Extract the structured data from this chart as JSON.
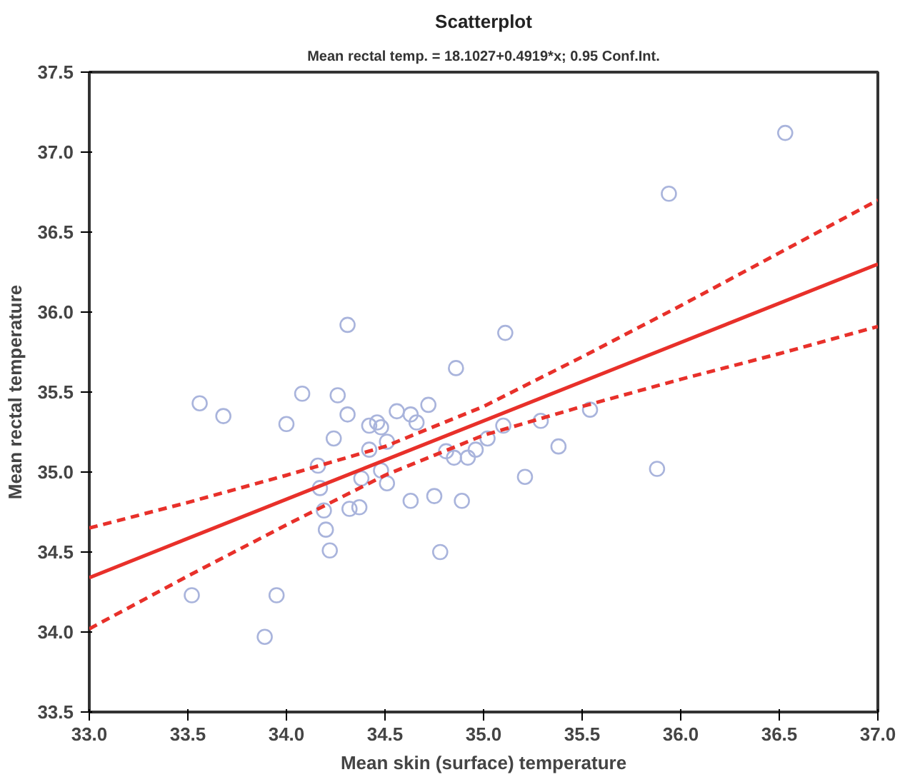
{
  "chart_data": {
    "type": "scatter",
    "title": "Scatterplot",
    "subtitle": "Mean rectal temp. = 18.1027+0.4919*x; 0.95 Conf.Int.",
    "xlabel": "Mean skin (surface) temperature",
    "ylabel": "Mean rectal temperature",
    "xlim": [
      33.0,
      37.0
    ],
    "ylim": [
      33.5,
      37.5
    ],
    "xticks": [
      {
        "value": 33,
        "label": "33.0"
      },
      33.5,
      {
        "value": 34,
        "label": "34.0"
      },
      34.5,
      {
        "value": 35,
        "label": "35.0"
      },
      35.5,
      {
        "value": 36,
        "label": "36.0"
      },
      36.5,
      {
        "value": 37,
        "label": "37.0"
      }
    ],
    "yticks": [
      33.5,
      {
        "value": 34,
        "label": "34.0"
      },
      34.5,
      {
        "value": 35,
        "label": "35.0"
      },
      35.5,
      {
        "value": 36,
        "label": "36.0"
      },
      36.5,
      {
        "value": 37,
        "label": "37.0"
      },
      37.5
    ],
    "grid": false,
    "marker": "circle",
    "series": [
      {
        "color": "#a9b4dc",
        "x": [
          33.56,
          33.68,
          33.52,
          33.95,
          33.89,
          34.0,
          34.08,
          34.31,
          34.26,
          34.31,
          34.16,
          34.17,
          34.19,
          34.2,
          34.22,
          34.32,
          34.37,
          34.24,
          34.38,
          34.42,
          34.46,
          34.48,
          34.51,
          34.42,
          34.48,
          34.51,
          34.56,
          34.63,
          34.66,
          34.72,
          34.63,
          34.75,
          34.78,
          34.86,
          34.89,
          34.81,
          34.85,
          34.92,
          34.96,
          35.02,
          35.1,
          35.11,
          35.21,
          35.29,
          35.38,
          35.54,
          35.88,
          35.94,
          36.53
        ],
        "values": [
          35.43,
          35.35,
          34.23,
          34.23,
          33.97,
          35.3,
          35.49,
          35.92,
          35.48,
          35.36,
          35.04,
          34.9,
          34.76,
          34.64,
          34.51,
          34.77,
          34.78,
          35.21,
          34.96,
          35.29,
          35.31,
          35.28,
          35.19,
          35.14,
          35.01,
          34.93,
          35.38,
          35.36,
          35.31,
          35.42,
          34.82,
          34.85,
          34.5,
          35.65,
          34.82,
          35.13,
          35.09,
          35.09,
          35.14,
          35.21,
          35.29,
          35.87,
          34.97,
          35.32,
          35.16,
          35.39,
          35.02,
          36.74,
          37.12
        ]
      },
      {
        "type": "line",
        "color": "#e8302a",
        "marker": "none",
        "line_style": "solid",
        "x": [
          33.0,
          37.0
        ],
        "values": [
          34.34,
          36.3
        ]
      },
      {
        "type": "line",
        "color": "#e8302a",
        "marker": "none",
        "line_style": "dashed",
        "x": [
          33.0,
          33.5,
          34.0,
          34.5,
          35.0,
          35.5,
          36.0,
          36.5,
          37.0
        ],
        "values": [
          34.65,
          34.81,
          34.98,
          35.16,
          35.41,
          35.72,
          36.04,
          36.37,
          36.7
        ]
      },
      {
        "type": "line",
        "color": "#e8302a",
        "marker": "none",
        "line_style": "dashed",
        "x": [
          33.0,
          33.5,
          34.0,
          34.5,
          35.0,
          35.5,
          36.0,
          36.5,
          37.0
        ],
        "values": [
          34.02,
          34.35,
          34.67,
          34.98,
          35.23,
          35.41,
          35.58,
          35.74,
          35.91
        ]
      }
    ]
  }
}
